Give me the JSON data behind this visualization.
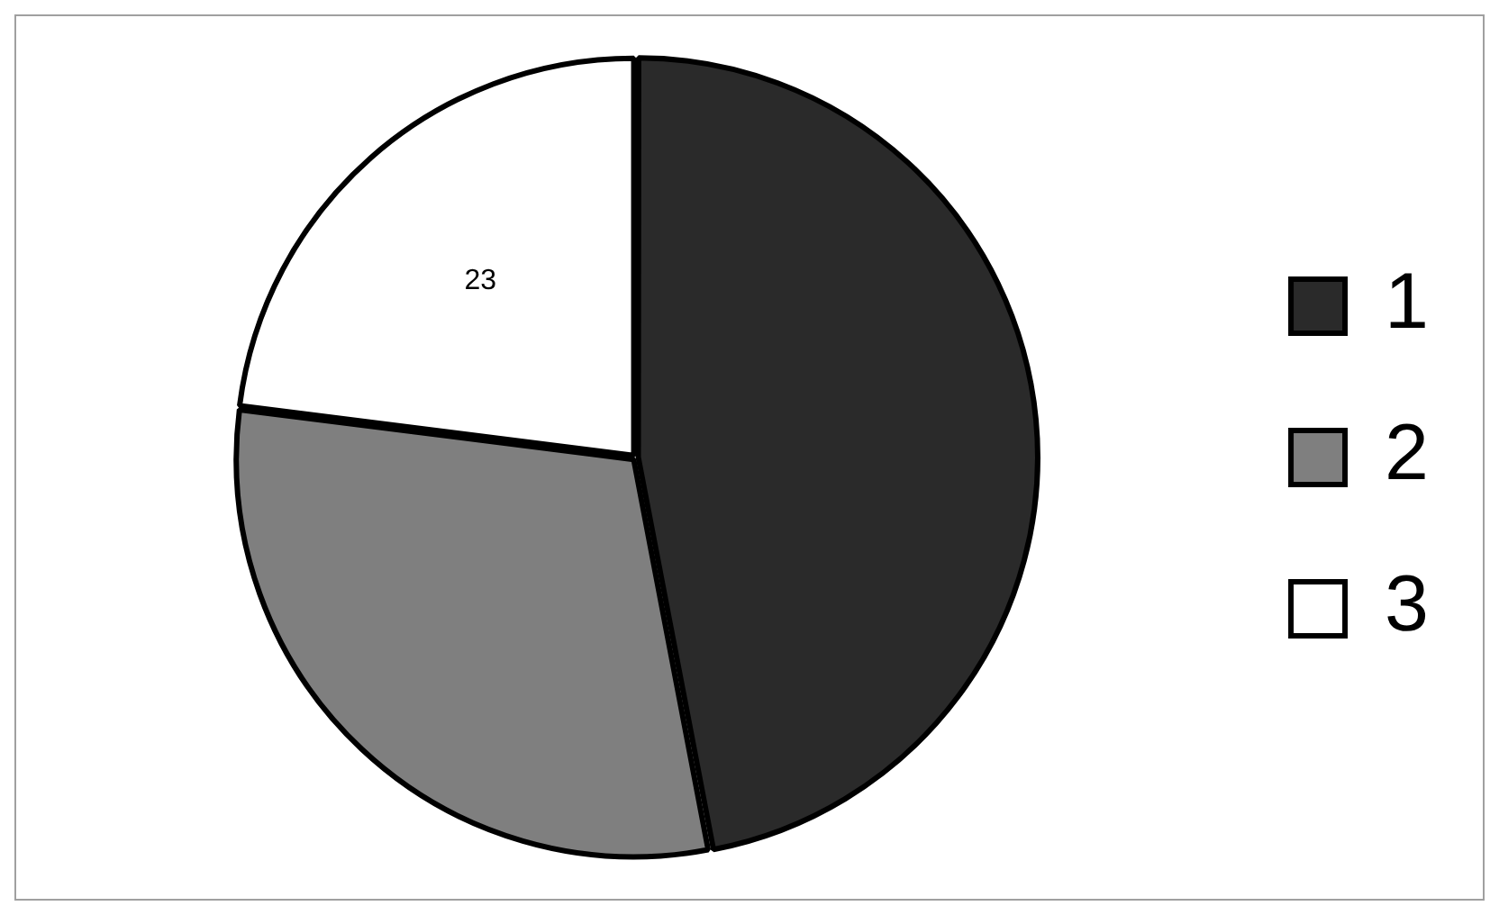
{
  "chart_data": {
    "type": "pie",
    "categories": [
      "1",
      "2",
      "3"
    ],
    "values": [
      47,
      30,
      23
    ],
    "colors": [
      "#2a2a2a",
      "#7f7f7f",
      "#ffffff"
    ],
    "value_labels": [
      null,
      null,
      "23"
    ],
    "legend": "right"
  }
}
